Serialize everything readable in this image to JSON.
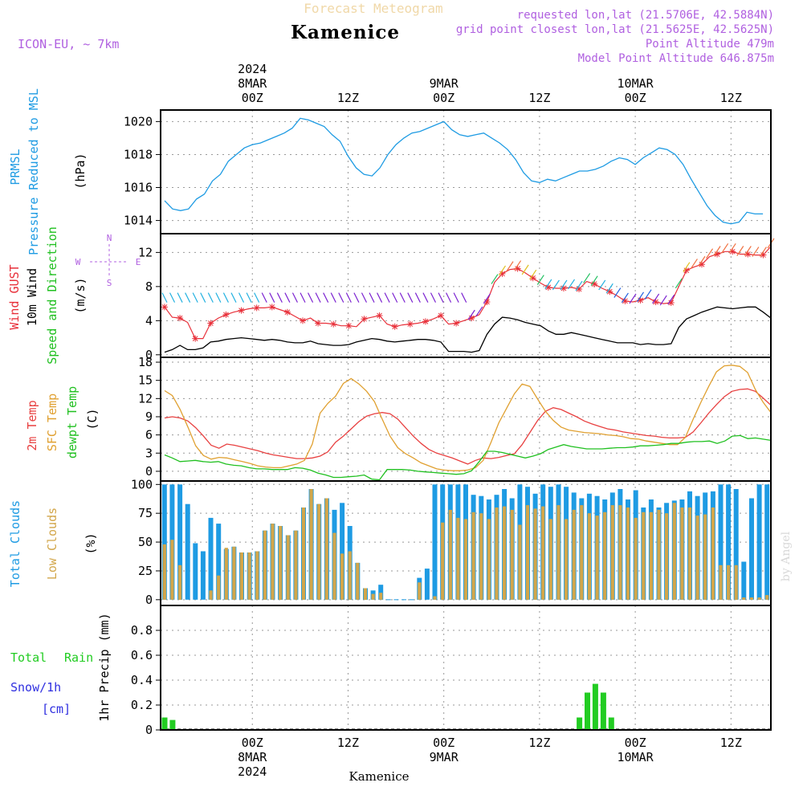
{
  "header": {
    "title": "Forecast Meteogram",
    "location": "Kamenice",
    "model": "ICON-EU, ~ 7km",
    "requested": "requested lon,lat (21.5706E, 42.5884N)",
    "gridpoint": "grid point closest lon,lat (21.5625E, 42.5625N)",
    "point_alt": "Point Altitude 479m",
    "model_alt": "Model Point Altitude 646.875m",
    "footer_location": "Kamenice",
    "watermark": "by Angel"
  },
  "colors": {
    "pressure": "#1e9be3",
    "gust": "#e8303a",
    "wind": "#000000",
    "temp2m": "#e84040",
    "sfc": "#e0a030",
    "dewpt": "#20c020",
    "total_clouds": "#1e9be3",
    "low_clouds": "#d2a64a",
    "rain": "#22cc22",
    "snow": "#3030e0",
    "meta": "#b060e0"
  },
  "time_axis": {
    "top_labels": [
      {
        "hour": 0,
        "time": "00Z",
        "date": "8MAR",
        "year": "2024"
      },
      {
        "hour": 12,
        "time": "12Z",
        "date": "",
        "year": ""
      },
      {
        "hour": 24,
        "time": "00Z",
        "date": "9MAR",
        "year": ""
      },
      {
        "hour": 36,
        "time": "12Z",
        "date": "",
        "year": ""
      },
      {
        "hour": 48,
        "time": "00Z",
        "date": "10MAR",
        "year": ""
      },
      {
        "hour": 60,
        "time": "12Z",
        "date": "",
        "year": ""
      }
    ],
    "range_hours": [
      -11.5,
      65
    ]
  },
  "panels": {
    "pressure": {
      "labels": [
        "PRMSL",
        "Pressure Reduced to MSL",
        "(hPa)"
      ]
    },
    "wind": {
      "labels": [
        "Wind GUST",
        "10m Wind",
        "Speed and Direction",
        "(m/s)"
      ],
      "compass": [
        "N",
        "S",
        "W",
        "E"
      ]
    },
    "temp": {
      "labels": [
        "2m Temp",
        "SFC Temp",
        "dewpt Temp",
        "(C)"
      ]
    },
    "clouds": {
      "labels": [
        "Total Clouds",
        "Low Clouds",
        "(%)"
      ]
    },
    "precip": {
      "labels": [
        "Total",
        "Rain",
        "Snow/1h",
        "[cm]",
        "1hr Precip (mm)"
      ]
    }
  },
  "chart_data": [
    {
      "type": "line",
      "id": "pressure",
      "ylabel": "Pressure Reduced to MSL (hPa)",
      "ylim": [
        1013.2,
        1020.7
      ],
      "yticks": [
        1014,
        1016,
        1018,
        1020
      ],
      "series": [
        {
          "name": "PRMSL",
          "x": [
            -11,
            -10,
            -9,
            -8,
            -7,
            -6,
            -5,
            -4,
            -3,
            -2,
            -1,
            0,
            1,
            2,
            3,
            4,
            5,
            6,
            7,
            8,
            9,
            10,
            11,
            12,
            13,
            14,
            15,
            16,
            17,
            18,
            19,
            20,
            21,
            22,
            23,
            24,
            25,
            26,
            27,
            28,
            29,
            30,
            31,
            32,
            33,
            34,
            35,
            36,
            37,
            38,
            39,
            40,
            41,
            42,
            43,
            44,
            45,
            46,
            47,
            48,
            49,
            50,
            51,
            52,
            53,
            54,
            55,
            56,
            57,
            58,
            59,
            60,
            61,
            62,
            63,
            64
          ],
          "values": [
            1015.2,
            1014.7,
            1014.6,
            1014.7,
            1015.3,
            1015.6,
            1016.4,
            1016.8,
            1017.6,
            1018.0,
            1018.4,
            1018.6,
            1018.7,
            1018.9,
            1019.1,
            1019.3,
            1019.6,
            1020.2,
            1020.1,
            1019.9,
            1019.7,
            1019.2,
            1018.8,
            1017.9,
            1017.2,
            1016.8,
            1016.7,
            1017.2,
            1018.0,
            1018.6,
            1019.0,
            1019.3,
            1019.4,
            1019.6,
            1019.8,
            1020.0,
            1019.5,
            1019.2,
            1019.1,
            1019.2,
            1019.3,
            1019.0,
            1018.7,
            1018.3,
            1017.7,
            1016.9,
            1016.4,
            1016.3,
            1016.5,
            1016.4,
            1016.6,
            1016.8,
            1017.0,
            1017.0,
            1017.1,
            1017.3,
            1017.6,
            1017.8,
            1017.7,
            1017.4,
            1017.8,
            1018.1,
            1018.4,
            1018.3,
            1018.0,
            1017.4,
            1016.5,
            1015.7,
            1014.9,
            1014.3,
            1013.9,
            1013.8,
            1013.9,
            1014.5,
            1014.4,
            1014.4
          ]
        }
      ]
    },
    {
      "type": "line",
      "id": "wind",
      "ylabel": "(m/s)",
      "ylim": [
        -0.3,
        14.2
      ],
      "yticks": [
        0,
        4,
        8,
        12
      ],
      "series": [
        {
          "name": "Wind GUST",
          "values": [
            5.6,
            4.4,
            4.3,
            3.8,
            1.9,
            1.9,
            3.7,
            4.3,
            4.7,
            5.0,
            5.2,
            5.4,
            5.5,
            5.5,
            5.6,
            5.3,
            5.0,
            4.5,
            4.0,
            4.3,
            3.7,
            3.7,
            3.6,
            3.4,
            3.4,
            3.3,
            4.2,
            4.4,
            4.6,
            3.6,
            3.3,
            3.5,
            3.6,
            3.7,
            3.9,
            4.2,
            4.6,
            3.6,
            3.7,
            4.0,
            4.3,
            4.7,
            6.2,
            8.5,
            9.5,
            10.0,
            10.1,
            9.6,
            9.0,
            8.4,
            7.9,
            7.8,
            7.8,
            7.9,
            7.7,
            8.6,
            8.3,
            7.8,
            7.4,
            6.9,
            6.3,
            6.2,
            6.4,
            6.7,
            6.2,
            6.0,
            6.1,
            8.0,
            9.9,
            10.3,
            10.6,
            11.5,
            11.8,
            12.1,
            12.1,
            11.8,
            11.8,
            11.7,
            11.7,
            12.7
          ]
        },
        {
          "name": "10m Wind",
          "values": [
            0.3,
            0.6,
            1.1,
            0.6,
            0.6,
            0.8,
            1.5,
            1.6,
            1.8,
            1.9,
            2.0,
            1.9,
            1.8,
            1.7,
            1.8,
            1.7,
            1.5,
            1.4,
            1.4,
            1.6,
            1.3,
            1.2,
            1.1,
            1.1,
            1.2,
            1.5,
            1.7,
            1.9,
            1.8,
            1.6,
            1.5,
            1.6,
            1.7,
            1.8,
            1.8,
            1.7,
            1.5,
            0.4,
            0.4,
            0.4,
            0.3,
            0.5,
            2.4,
            3.6,
            4.4,
            4.3,
            4.1,
            3.8,
            3.6,
            3.4,
            2.8,
            2.4,
            2.4,
            2.6,
            2.4,
            2.2,
            2.0,
            1.8,
            1.6,
            1.4,
            1.4,
            1.4,
            1.2,
            1.3,
            1.2,
            1.2,
            1.3,
            3.2,
            4.2,
            4.6,
            5.0,
            5.3,
            5.6,
            5.5,
            5.4,
            5.5,
            5.6,
            5.6,
            5.0,
            4.3
          ]
        }
      ]
    },
    {
      "type": "line",
      "id": "temperature",
      "ylabel": "(C)",
      "ylim": [
        -1.6,
        18.8
      ],
      "yticks": [
        0,
        3,
        6,
        9,
        12,
        15,
        18
      ],
      "series": [
        {
          "name": "2m Temp",
          "values": [
            8.8,
            9.0,
            8.8,
            8.3,
            7.2,
            5.8,
            4.3,
            3.8,
            4.5,
            4.3,
            4.0,
            3.7,
            3.4,
            3.0,
            2.7,
            2.5,
            2.3,
            2.1,
            2.1,
            2.2,
            2.5,
            3.2,
            4.8,
            5.8,
            7.0,
            8.2,
            9.1,
            9.5,
            9.7,
            9.5,
            8.6,
            7.2,
            5.8,
            4.6,
            3.6,
            3.0,
            2.6,
            2.2,
            1.7,
            1.2,
            1.8,
            2.2,
            2.1,
            2.3,
            2.6,
            2.9,
            4.4,
            6.4,
            8.4,
            9.9,
            10.5,
            10.2,
            9.6,
            9.0,
            8.3,
            7.8,
            7.4,
            7.0,
            6.8,
            6.5,
            6.3,
            6.1,
            5.9,
            5.8,
            5.6,
            5.5,
            5.5,
            5.6,
            6.5,
            8.0,
            9.6,
            11.0,
            12.3,
            13.2,
            13.5,
            13.6,
            13.2,
            12.1,
            10.9
          ]
        },
        {
          "name": "SFC Temp",
          "values": [
            13.3,
            12.5,
            10.2,
            7.3,
            4.2,
            2.6,
            2.0,
            2.3,
            2.2,
            1.9,
            1.6,
            1.3,
            0.9,
            0.7,
            0.6,
            0.6,
            0.9,
            1.2,
            1.8,
            4.5,
            9.6,
            11.2,
            12.4,
            14.5,
            15.3,
            14.4,
            13.2,
            11.5,
            8.6,
            5.8,
            3.9,
            2.9,
            2.2,
            1.4,
            0.9,
            0.4,
            0.2,
            0.1,
            0.1,
            0.2,
            0.6,
            1.8,
            4.8,
            8.0,
            10.4,
            12.8,
            14.4,
            14.0,
            11.9,
            9.9,
            8.4,
            7.3,
            6.8,
            6.6,
            6.4,
            6.3,
            6.2,
            6.0,
            5.9,
            5.7,
            5.4,
            5.3,
            5.0,
            4.8,
            4.6,
            4.4,
            4.4,
            5.6,
            8.6,
            11.4,
            14.0,
            16.4,
            17.4,
            17.5,
            17.3,
            16.3,
            13.5,
            11.4,
            9.7
          ]
        },
        {
          "name": "dewpt Temp",
          "values": [
            2.7,
            2.2,
            1.6,
            1.7,
            1.8,
            1.6,
            1.5,
            1.6,
            1.2,
            1.0,
            0.9,
            0.6,
            0.4,
            0.4,
            0.3,
            0.3,
            0.3,
            0.6,
            0.5,
            0.2,
            -0.3,
            -0.6,
            -1.0,
            -1.0,
            -0.9,
            -0.8,
            -0.6,
            -1.3,
            -1.4,
            0.3,
            0.3,
            0.3,
            0.2,
            0.0,
            -0.1,
            -0.2,
            -0.3,
            -0.4,
            -0.5,
            -0.4,
            0.1,
            1.6,
            3.3,
            3.3,
            3.1,
            2.8,
            2.5,
            2.2,
            2.5,
            2.9,
            3.6,
            4.0,
            4.4,
            4.1,
            3.9,
            3.7,
            3.7,
            3.7,
            3.8,
            3.9,
            3.9,
            4.0,
            4.2,
            4.2,
            4.3,
            4.4,
            4.6,
            4.6,
            4.8,
            4.9,
            4.9,
            5.0,
            4.6,
            5.0,
            5.8,
            5.9,
            5.4,
            5.5,
            5.3,
            5.1
          ]
        }
      ]
    },
    {
      "type": "bar",
      "id": "clouds",
      "ylabel": "(%)",
      "ylim": [
        -5,
        103
      ],
      "yticks": [
        0,
        25,
        50,
        75,
        100
      ],
      "series": [
        {
          "name": "Total Clouds",
          "values": [
            100,
            100,
            100,
            83,
            49,
            42,
            71,
            66,
            44,
            46,
            41,
            41,
            42,
            60,
            66,
            64,
            56,
            60,
            80,
            96,
            83,
            88,
            78,
            84,
            64,
            32,
            10,
            8,
            13,
            0,
            0,
            0,
            0,
            19,
            27,
            100,
            100,
            100,
            100,
            100,
            91,
            90,
            87,
            91,
            96,
            88,
            100,
            98,
            92,
            100,
            98,
            100,
            98,
            93,
            88,
            92,
            90,
            87,
            93,
            96,
            87,
            95,
            80,
            87,
            80,
            84,
            86,
            87,
            94,
            90,
            93,
            94,
            100,
            100,
            96,
            33,
            88,
            100,
            100
          ]
        },
        {
          "name": "Low Clouds",
          "values": [
            48,
            52,
            30,
            0,
            0,
            0,
            8,
            21,
            45,
            46,
            41,
            41,
            42,
            60,
            66,
            64,
            56,
            60,
            80,
            96,
            83,
            88,
            58,
            40,
            42,
            32,
            10,
            5,
            6,
            0,
            0,
            0,
            0,
            15,
            0,
            3,
            67,
            78,
            71,
            70,
            76,
            75,
            70,
            80,
            81,
            78,
            65,
            82,
            79,
            81,
            70,
            82,
            70,
            78,
            82,
            75,
            73,
            76,
            82,
            82,
            80,
            71,
            76,
            76,
            78,
            75,
            84,
            80,
            80,
            73,
            74,
            80,
            30,
            30,
            30,
            2,
            2,
            2,
            4
          ]
        }
      ]
    },
    {
      "type": "bar",
      "id": "precip",
      "ylabel": "1hr Precip (mm)",
      "ylim": [
        0,
        1.0
      ],
      "yticks": [
        0,
        0.2,
        0.4,
        0.6,
        0.8
      ],
      "series": [
        {
          "name": "Total Rain",
          "x": [
            -11,
            -10,
            41,
            42,
            43,
            44,
            45,
            46
          ],
          "values": [
            0.1,
            0.08,
            0.1,
            0.3,
            0.37,
            0.3,
            0.1,
            0
          ]
        }
      ]
    }
  ]
}
